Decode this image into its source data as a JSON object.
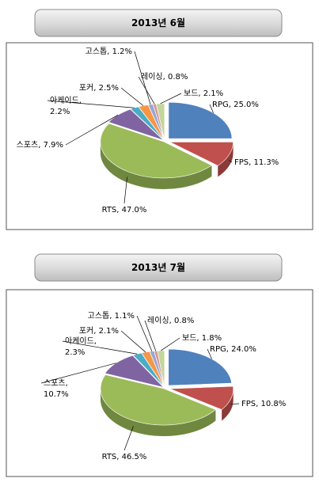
{
  "chart_data": [
    {
      "type": "pie",
      "title": "2013년 6월",
      "values": [
        25.0,
        11.3,
        47.0,
        7.9,
        2.2,
        2.5,
        1.2,
        0.8,
        2.1
      ],
      "value_labels": [
        "RPG, 25.0%",
        "FPS, 11.3%",
        "RTS, 47.0%",
        "스포츠, 7.9%",
        "아케이드,\n2.2%",
        "포커, 2.5%",
        "고스톱, 1.2%",
        "레이싱, 0.8%",
        "보드, 2.1%"
      ],
      "colors": [
        "#4f81bd",
        "#c0504d",
        "#9bbb59",
        "#8064a2",
        "#4bacc6",
        "#f79646",
        "#95a8d4",
        "#d99694",
        "#c3d69b"
      ]
    },
    {
      "type": "pie",
      "title": "2013년 7월",
      "values": [
        24.0,
        10.8,
        46.5,
        10.7,
        2.3,
        2.1,
        1.1,
        0.8,
        1.8
      ],
      "value_labels": [
        "RPG, 24.0%",
        "FPS, 10.8%",
        "RTS, 46.5%",
        "스포츠,\n10.7%",
        "아케이드,\n2.3%",
        "포커, 2.1%",
        "고스톱, 1.1%",
        "레이싱, 0.8%",
        "보드, 1.8%"
      ],
      "colors": [
        "#4f81bd",
        "#c0504d",
        "#9bbb59",
        "#8064a2",
        "#4bacc6",
        "#f79646",
        "#95a8d4",
        "#d99694",
        "#c3d69b"
      ]
    }
  ]
}
